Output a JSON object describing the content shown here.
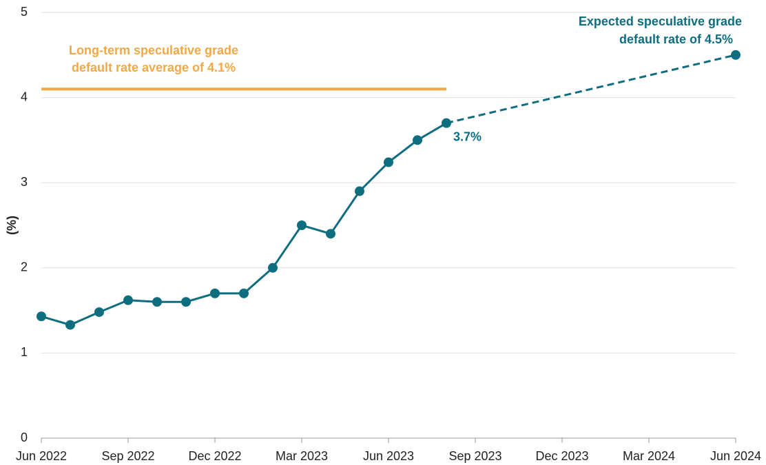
{
  "chart_data": {
    "type": "line",
    "y_label": "(%)",
    "categories": [
      "Jun 2022",
      null,
      null,
      "Sep 2022",
      null,
      null,
      "Dec 2022",
      null,
      null,
      "Mar 2023",
      null,
      null,
      "Jun 2023",
      null,
      null,
      "Sep 2023",
      null,
      null,
      "Dec 2023",
      null,
      null,
      "Mar 2024",
      null,
      null,
      "Jun 2024"
    ],
    "series": [
      {
        "name": "Actual",
        "color": "#0e6e80",
        "values": [
          1.43,
          1.33,
          1.48,
          1.62,
          1.6,
          1.6,
          1.7,
          1.7,
          2.0,
          2.5,
          2.4,
          2.9,
          3.24,
          3.5,
          3.7,
          null,
          null,
          null,
          null,
          null,
          null,
          null,
          null,
          null,
          null
        ],
        "value_labels": [
          null,
          null,
          null,
          null,
          null,
          null,
          null,
          null,
          null,
          null,
          null,
          null,
          null,
          null,
          "3.7%",
          null,
          null,
          null,
          null,
          null,
          null,
          null,
          null,
          null,
          null
        ]
      },
      {
        "name": "Expected",
        "color": "#0e6e80",
        "dashed": true,
        "values": [
          null,
          null,
          null,
          null,
          null,
          null,
          null,
          null,
          null,
          null,
          null,
          null,
          null,
          null,
          null,
          null,
          null,
          null,
          null,
          null,
          null,
          null,
          null,
          null,
          4.5
        ]
      }
    ],
    "reference_line": {
      "value": 4.1,
      "color": "#f2a845",
      "label": [
        "Long-term speculative grade",
        "default rate average of 4.1%"
      ]
    },
    "forecast_label": [
      "Expected speculative grade",
      "default rate of 4.5%"
    ],
    "ylim": [
      0,
      5
    ],
    "yticks": [
      0,
      1,
      2,
      3,
      4,
      5
    ],
    "grid": true
  }
}
